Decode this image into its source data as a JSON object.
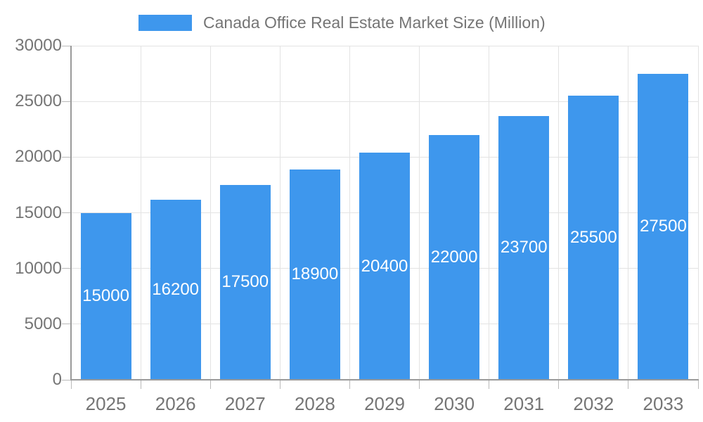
{
  "legend": {
    "label": "Canada Office Real Estate Market Size (Million)"
  },
  "chart_data": {
    "type": "bar",
    "title": "Canada Office Real Estate Market Size (Million)",
    "categories": [
      "2025",
      "2026",
      "2027",
      "2028",
      "2029",
      "2030",
      "2031",
      "2032",
      "2033"
    ],
    "values": [
      15000,
      16200,
      17500,
      18900,
      20400,
      22000,
      23700,
      25500,
      27500
    ],
    "xlabel": "",
    "ylabel": "",
    "ylim": [
      0,
      30000
    ],
    "yticks": [
      0,
      5000,
      10000,
      15000,
      20000,
      25000,
      30000
    ],
    "grid": true,
    "legend_position": "top",
    "colors": {
      "bar": "#3E97ED",
      "bar_label": "#FFFFFF",
      "axis": "#9A9A9A",
      "grid": "#E3E3E3",
      "tick": "#B9B9B9",
      "text": "#757575",
      "background": "#FFFFFF"
    }
  }
}
